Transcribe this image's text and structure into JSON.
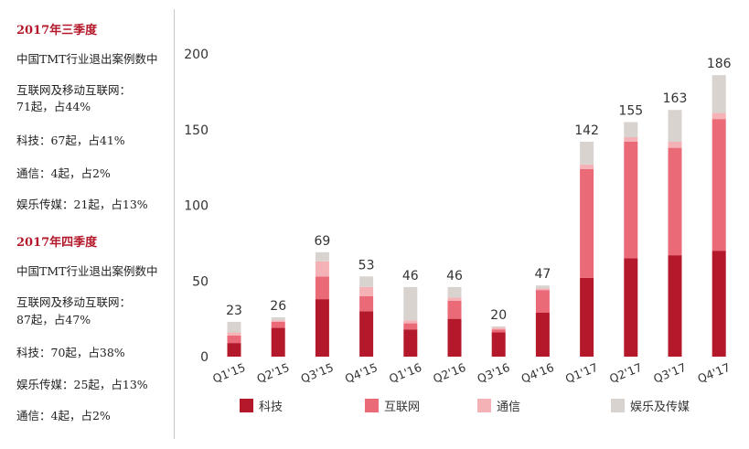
{
  "sidebar": {
    "q3": {
      "title": "2017年三季度",
      "lines": [
        "中国TMT行业退出案例数中",
        "互联网及移动互联网：",
        "71起，占44%",
        "科技：67起，占41%",
        "通信：4起，占2%",
        "娱乐传媒：21起，占13%"
      ]
    },
    "q4": {
      "title": "2017年四季度",
      "lines": [
        "中国TMT行业退出案例数中",
        "互联网及移动互联网：",
        "87起，占47%",
        "科技：70起，占38%",
        "娱乐传媒：25起，占13%",
        "通信：4起，占2%"
      ]
    }
  },
  "chart_data": {
    "type": "bar",
    "stacked": true,
    "categories": [
      "Q1'15",
      "Q2'15",
      "Q3'15",
      "Q4'15",
      "Q1'16",
      "Q2'16",
      "Q3'16",
      "Q4'16",
      "Q1'17",
      "Q2'17",
      "Q3'17",
      "Q4'17"
    ],
    "totals": [
      23,
      26,
      69,
      53,
      46,
      46,
      20,
      47,
      142,
      155,
      163,
      186
    ],
    "series": [
      {
        "name": "科技",
        "color": "#b3192b",
        "values": [
          9,
          19,
          38,
          30,
          18,
          25,
          16,
          29,
          52,
          65,
          67,
          70
        ]
      },
      {
        "name": "互联网",
        "color": "#ea6a78",
        "values": [
          5,
          4,
          15,
          10,
          4,
          12,
          2,
          15,
          72,
          77,
          71,
          87
        ]
      },
      {
        "name": "通信",
        "color": "#f4b1b6",
        "values": [
          2,
          1,
          10,
          6,
          2,
          2,
          1,
          1,
          3,
          3,
          4,
          4
        ]
      },
      {
        "name": "娱乐及传媒",
        "color": "#d9d3d0",
        "values": [
          7,
          2,
          6,
          7,
          22,
          7,
          1,
          2,
          15,
          10,
          21,
          25
        ]
      }
    ],
    "y_ticks": [
      0,
      50,
      100,
      150,
      200
    ],
    "ylim": [
      0,
      200
    ],
    "legend_position": "bottom",
    "grid": false
  }
}
